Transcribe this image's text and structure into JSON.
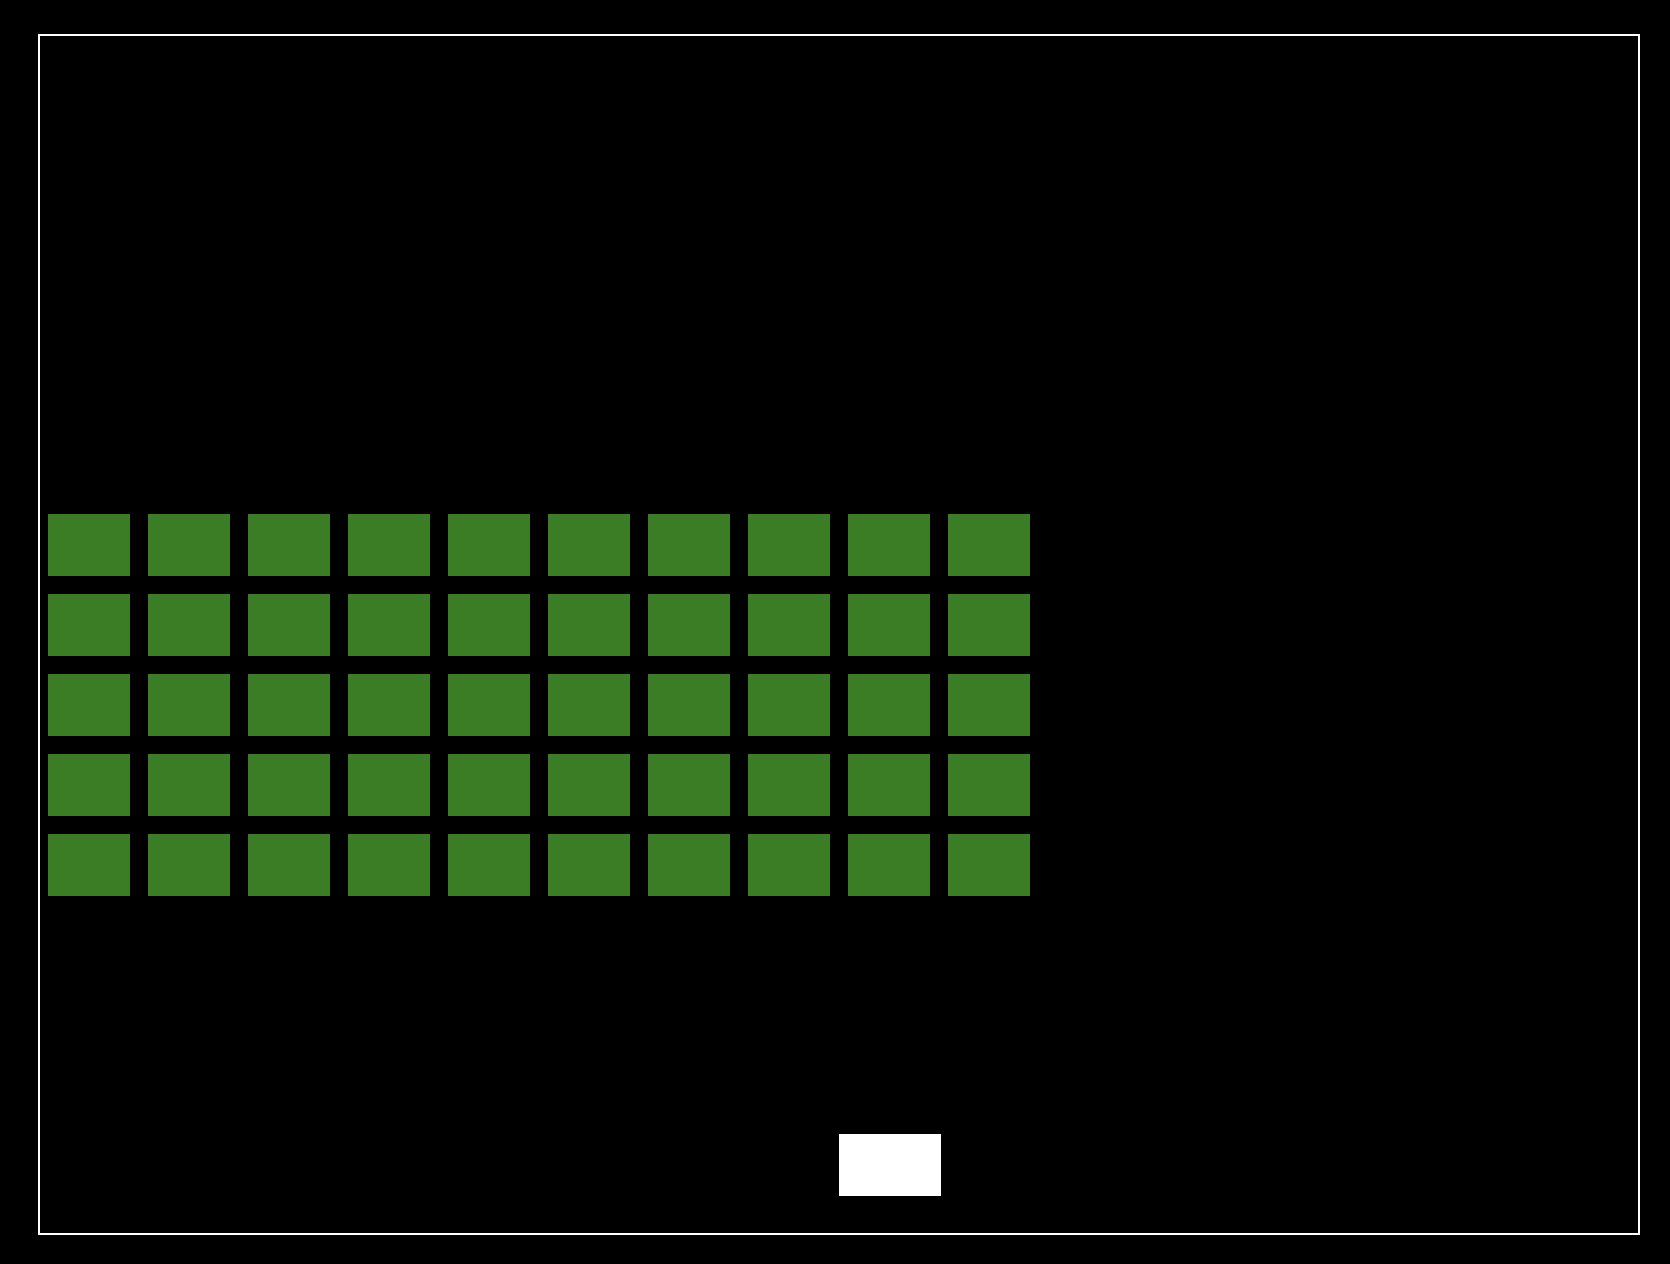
{
  "game": {
    "type": "brick-breaker",
    "colors": {
      "background": "#000000",
      "border": "#ffffff",
      "brick": "#3a7d24",
      "paddle": "#ffffff"
    },
    "bricks": {
      "rows": 5,
      "columns": 10
    }
  }
}
